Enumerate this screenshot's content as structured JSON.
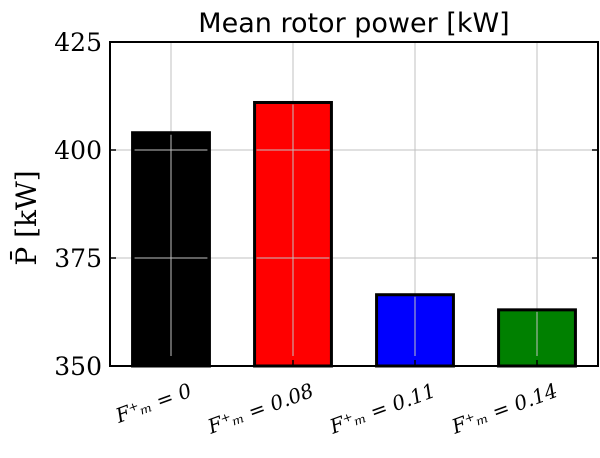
{
  "chart_data": {
    "type": "bar",
    "title": "Mean rotor power [kW]",
    "ylabel": "P̄   [kW]",
    "xlabel": "",
    "categories": [
      "F⁺ₘ = 0",
      "F⁺ₘ = 0.08",
      "F⁺ₘ = 0.11",
      "F⁺ₘ = 0.14"
    ],
    "values": [
      404,
      411,
      366.5,
      363
    ],
    "colors": [
      "#000000",
      "#ff0000",
      "#0000ff",
      "#008000"
    ],
    "ylim": [
      350,
      425
    ],
    "yticks": [
      350,
      375,
      400,
      425
    ],
    "grid": true,
    "legend": "none"
  }
}
